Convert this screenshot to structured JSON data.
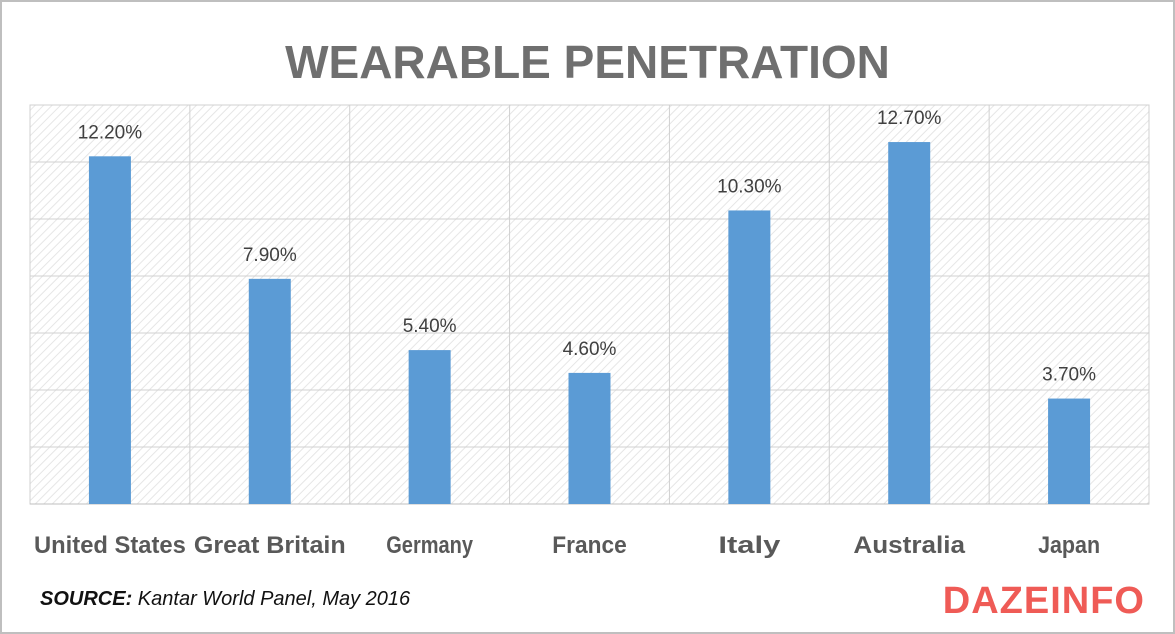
{
  "chart_data": {
    "type": "bar",
    "title": "WEARABLE PENETRATION",
    "categories": [
      "United States",
      "Great Britain",
      "Germany",
      "France",
      "Italy",
      "Australia",
      "Japan"
    ],
    "values": [
      12.2,
      7.9,
      5.4,
      4.6,
      10.3,
      12.7,
      3.7
    ],
    "value_labels": [
      "12.20%",
      "7.90%",
      "5.40%",
      "4.60%",
      "10.30%",
      "12.70%",
      "3.70%"
    ],
    "ylim": [
      0,
      14
    ],
    "grid": true,
    "bar_color": "#5b9bd5"
  },
  "source": {
    "label": "SOURCE:",
    "text": "Kantar World Panel, May 2016"
  },
  "logo": {
    "text": "DAZEINFO",
    "color": "#ef5b56"
  }
}
